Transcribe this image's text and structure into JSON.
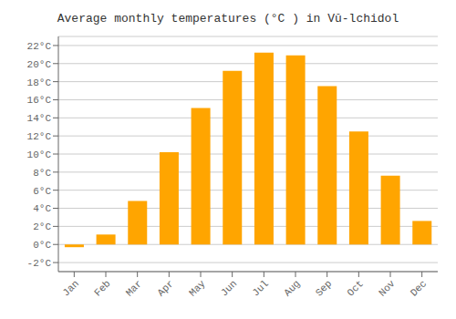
{
  "chart_data": {
    "type": "bar",
    "title": "Average monthly temperatures (°C ) in Vŭ-lchidol",
    "categories": [
      "Jan",
      "Feb",
      "Mar",
      "Apr",
      "May",
      "Jun",
      "Jul",
      "Aug",
      "Sep",
      "Oct",
      "Nov",
      "Dec"
    ],
    "values": [
      -0.3,
      1.1,
      4.8,
      10.2,
      15.1,
      19.2,
      21.2,
      20.9,
      17.5,
      12.5,
      7.6,
      2.6
    ],
    "color": "#FFA500",
    "ylim": [
      -3,
      23
    ],
    "yticks": [
      {
        "value": -2,
        "label": "-2°C"
      },
      {
        "value": 0,
        "label": "0°C"
      },
      {
        "value": 2,
        "label": "2°C"
      },
      {
        "value": 4,
        "label": "4°C"
      },
      {
        "value": 6,
        "label": "6°C"
      },
      {
        "value": 8,
        "label": "8°C"
      },
      {
        "value": 10,
        "label": "10°C"
      },
      {
        "value": 12,
        "label": "12°C"
      },
      {
        "value": 14,
        "label": "14°C"
      },
      {
        "value": 16,
        "label": "16°C"
      },
      {
        "value": 18,
        "label": "18°C"
      },
      {
        "value": 20,
        "label": "20°C"
      },
      {
        "value": 22,
        "label": "22°C"
      }
    ],
    "grid": true
  }
}
